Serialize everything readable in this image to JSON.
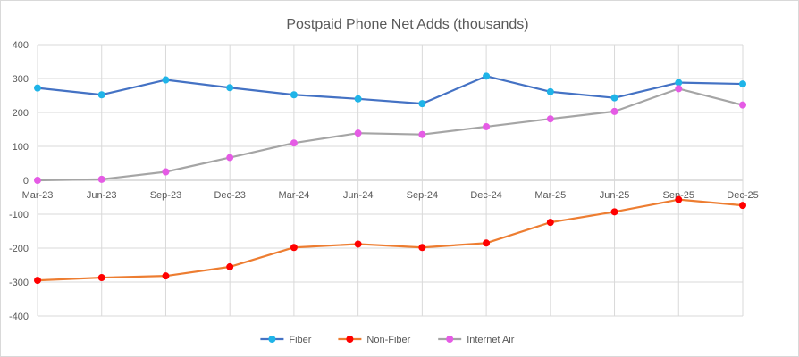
{
  "chart_data": {
    "type": "line",
    "title": "Postpaid Phone Net Adds (thousands)",
    "xlabel": "",
    "ylabel": "",
    "categories": [
      "Mar-23",
      "Jun-23",
      "Sep-23",
      "Dec-23",
      "Mar-24",
      "Jun-24",
      "Sep-24",
      "Dec-24",
      "Mar-25",
      "Jun-25",
      "Sep-25",
      "Dec-25"
    ],
    "ylim": [
      -400,
      400
    ],
    "yticks": [
      -400,
      -300,
      -200,
      -100,
      0,
      100,
      200,
      300,
      400
    ],
    "grid": true,
    "legend_position": "bottom",
    "series": [
      {
        "name": "Fiber",
        "line_color": "#4472c4",
        "marker_color": "#1fb4e8",
        "values": [
          272,
          252,
          296,
          273,
          252,
          240,
          226,
          307,
          261,
          243,
          288,
          284
        ]
      },
      {
        "name": "Non-Fiber",
        "line_color": "#ed7d31",
        "marker_color": "#ff0000",
        "values": [
          -295,
          -287,
          -282,
          -255,
          -198,
          -188,
          -198,
          -185,
          -124,
          -93,
          -57,
          -74
        ]
      },
      {
        "name": "Internet Air",
        "line_color": "#a5a5a5",
        "marker_color": "#e55be5",
        "values": [
          0,
          3,
          25,
          67,
          110,
          139,
          135,
          158,
          181,
          203,
          270,
          222
        ]
      }
    ]
  }
}
